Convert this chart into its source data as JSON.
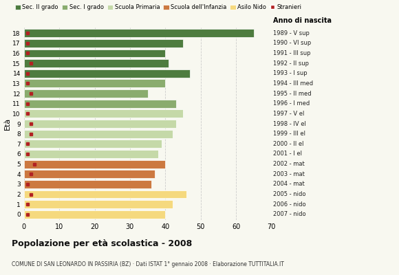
{
  "ages": [
    18,
    17,
    16,
    15,
    14,
    13,
    12,
    11,
    10,
    9,
    8,
    7,
    6,
    5,
    4,
    3,
    2,
    1,
    0
  ],
  "bar_values": [
    65,
    45,
    40,
    41,
    47,
    40,
    35,
    43,
    45,
    43,
    42,
    39,
    38,
    40,
    37,
    36,
    46,
    42,
    40
  ],
  "stranieri_values": [
    1,
    1,
    1,
    2,
    1,
    1,
    2,
    1,
    1,
    2,
    2,
    1,
    1,
    3,
    2,
    1,
    2,
    1,
    1
  ],
  "bar_colors": [
    "#4e7c3f",
    "#4e7c3f",
    "#4e7c3f",
    "#4e7c3f",
    "#4e7c3f",
    "#8aac6e",
    "#8aac6e",
    "#8aac6e",
    "#c5d9a8",
    "#c5d9a8",
    "#c5d9a8",
    "#c5d9a8",
    "#c5d9a8",
    "#cc7940",
    "#cc7940",
    "#cc7940",
    "#f5d97e",
    "#f5d97e",
    "#f5d97e"
  ],
  "right_labels": [
    "1989 - V sup",
    "1990 - VI sup",
    "1991 - III sup",
    "1992 - II sup",
    "1993 - I sup",
    "1994 - III med",
    "1995 - II med",
    "1996 - I med",
    "1997 - V el",
    "1998 - IV el",
    "1999 - III el",
    "2000 - II el",
    "2001 - I el",
    "2002 - mat",
    "2003 - mat",
    "2004 - mat",
    "2005 - nido",
    "2006 - nido",
    "2007 - nido"
  ],
  "legend_labels": [
    "Sec. II grado",
    "Sec. I grado",
    "Scuola Primaria",
    "Scuola dell'Infanzia",
    "Asilo Nido",
    "Stranieri"
  ],
  "legend_colors": [
    "#4e7c3f",
    "#8aac6e",
    "#c5d9a8",
    "#cc7940",
    "#f5d97e",
    "#b22222"
  ],
  "title": "Popolazione per età scolastica - 2008",
  "subtitle": "COMUNE DI SAN LEONARDO IN PASSIRIA (BZ) · Dati ISTAT 1° gennaio 2008 · Elaborazione TUTTITALIA.IT",
  "ylabel": "Età",
  "ylabel2": "Anno di nascita",
  "xlim": [
    0,
    70
  ],
  "xticks": [
    0,
    10,
    20,
    30,
    40,
    50,
    60,
    70
  ],
  "background_color": "#f8f8f0",
  "stranieri_color": "#b22222"
}
